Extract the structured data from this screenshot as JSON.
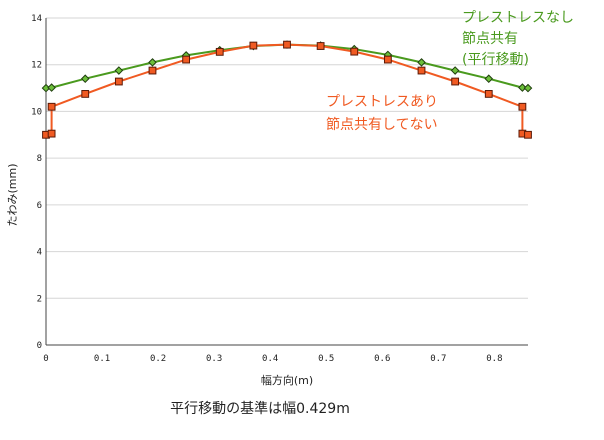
{
  "chart_data": {
    "type": "line",
    "xlabel": "幅方向(m)",
    "ylabel": "たわみ(mm)",
    "xlim": [
      0,
      0.86
    ],
    "ylim": [
      0,
      14
    ],
    "x_ticks": [
      "0",
      "0.1",
      "0.2",
      "0.3",
      "0.4",
      "0.5",
      "0.6",
      "0.7",
      "0.8"
    ],
    "y_ticks": [
      "0",
      "2",
      "4",
      "6",
      "8",
      "10",
      "12",
      "14"
    ],
    "x_tick_values": [
      0,
      0.1,
      0.2,
      0.3,
      0.4,
      0.5,
      0.6,
      0.7,
      0.8
    ],
    "y_tick_values": [
      0,
      2,
      4,
      6,
      8,
      10,
      12,
      14
    ],
    "caption": "平行移動の基準は幅0.429m",
    "series": [
      {
        "label_lines": [
          "プレストレスなし",
          "節点共有",
          "(平行移動)"
        ],
        "color": "#4a9a1e",
        "marker": "diamond",
        "points": [
          [
            0.0,
            11.0
          ],
          [
            0.01,
            11.02
          ],
          [
            0.07,
            11.4
          ],
          [
            0.13,
            11.75
          ],
          [
            0.19,
            12.1
          ],
          [
            0.25,
            12.4
          ],
          [
            0.31,
            12.62
          ],
          [
            0.37,
            12.8
          ],
          [
            0.43,
            12.86
          ],
          [
            0.49,
            12.82
          ],
          [
            0.55,
            12.67
          ],
          [
            0.61,
            12.42
          ],
          [
            0.67,
            12.1
          ],
          [
            0.73,
            11.75
          ],
          [
            0.79,
            11.4
          ],
          [
            0.85,
            11.02
          ],
          [
            0.86,
            11.0
          ]
        ]
      },
      {
        "label_lines": [
          "プレストレスあり",
          "節点共有してない"
        ],
        "color": "#f05a22",
        "marker": "square",
        "points": [
          [
            0.0,
            9.0
          ],
          [
            0.01,
            9.05
          ],
          [
            0.01,
            10.2
          ],
          [
            0.07,
            10.75
          ],
          [
            0.13,
            11.28
          ],
          [
            0.19,
            11.75
          ],
          [
            0.25,
            12.22
          ],
          [
            0.31,
            12.55
          ],
          [
            0.37,
            12.82
          ],
          [
            0.43,
            12.86
          ],
          [
            0.49,
            12.8
          ],
          [
            0.55,
            12.56
          ],
          [
            0.61,
            12.22
          ],
          [
            0.67,
            11.75
          ],
          [
            0.73,
            11.28
          ],
          [
            0.79,
            10.75
          ],
          [
            0.85,
            10.2
          ],
          [
            0.85,
            9.05
          ],
          [
            0.86,
            9.0
          ]
        ]
      }
    ]
  }
}
